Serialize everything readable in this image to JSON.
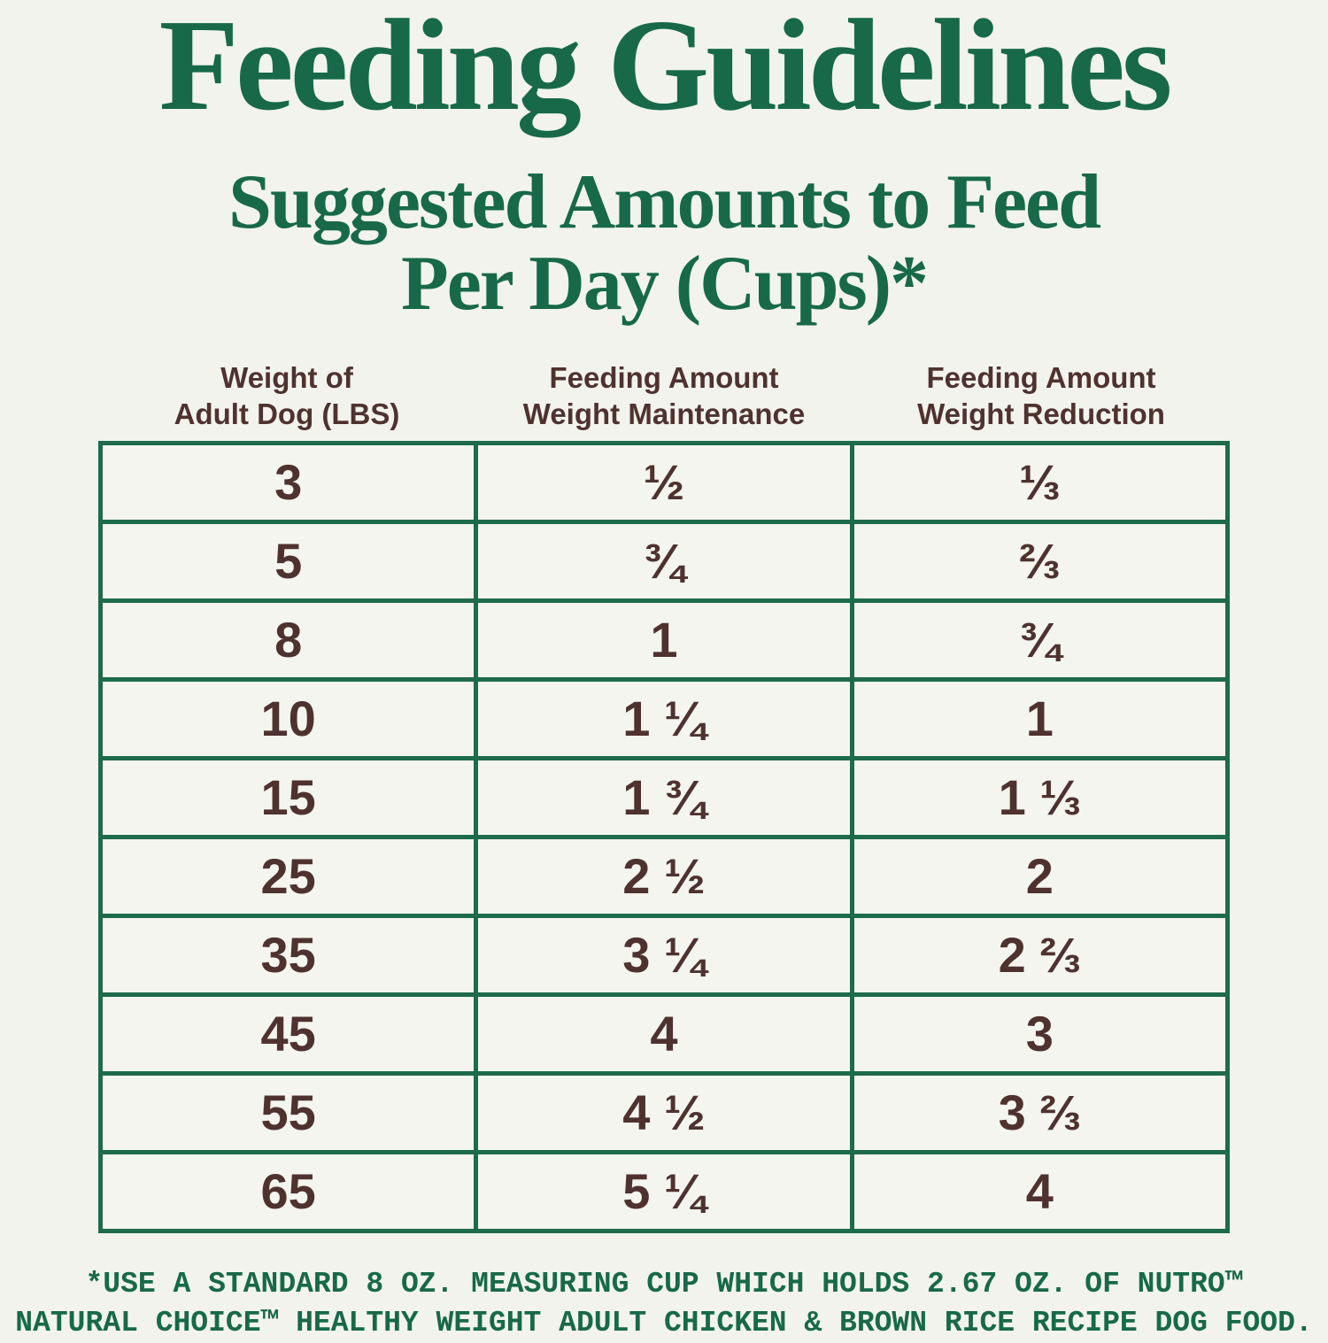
{
  "page": {
    "title": "Feeding Guidelines",
    "subtitle_line1": "Suggested Amounts to Feed",
    "subtitle_line2": "Per Day (Cups)*"
  },
  "colors": {
    "heading_green": "#17694a",
    "table_border_green": "#1d6b4c",
    "text_brown": "#4f3230",
    "background": "#f2f3ec"
  },
  "table": {
    "column_headers": [
      {
        "line1": "Weight of",
        "line2": "Adult Dog (LBS)"
      },
      {
        "line1": "Feeding Amount",
        "line2": "Weight Maintenance"
      },
      {
        "line1": "Feeding Amount",
        "line2": "Weight Reduction"
      }
    ],
    "rows": [
      {
        "weight": "3",
        "maintenance": "½",
        "reduction": "⅓"
      },
      {
        "weight": "5",
        "maintenance": "¾",
        "reduction": "⅔"
      },
      {
        "weight": "8",
        "maintenance": "1",
        "reduction": "¾"
      },
      {
        "weight": "10",
        "maintenance": "1 ¼",
        "reduction": "1"
      },
      {
        "weight": "15",
        "maintenance": "1 ¾",
        "reduction": "1 ⅓"
      },
      {
        "weight": "25",
        "maintenance": "2 ½",
        "reduction": "2"
      },
      {
        "weight": "35",
        "maintenance": "3 ¼",
        "reduction": "2 ⅔"
      },
      {
        "weight": "45",
        "maintenance": "4",
        "reduction": "3"
      },
      {
        "weight": "55",
        "maintenance": "4 ½",
        "reduction": "3 ⅔"
      },
      {
        "weight": "65",
        "maintenance": "5 ¼",
        "reduction": "4"
      }
    ]
  },
  "footnote": {
    "line1": "*USE A STANDARD 8 OZ. MEASURING CUP WHICH HOLDS 2.67 OZ. OF NUTRO™",
    "line2": "NATURAL CHOICE™ HEALTHY WEIGHT ADULT CHICKEN & BROWN RICE RECIPE DOG FOOD."
  }
}
